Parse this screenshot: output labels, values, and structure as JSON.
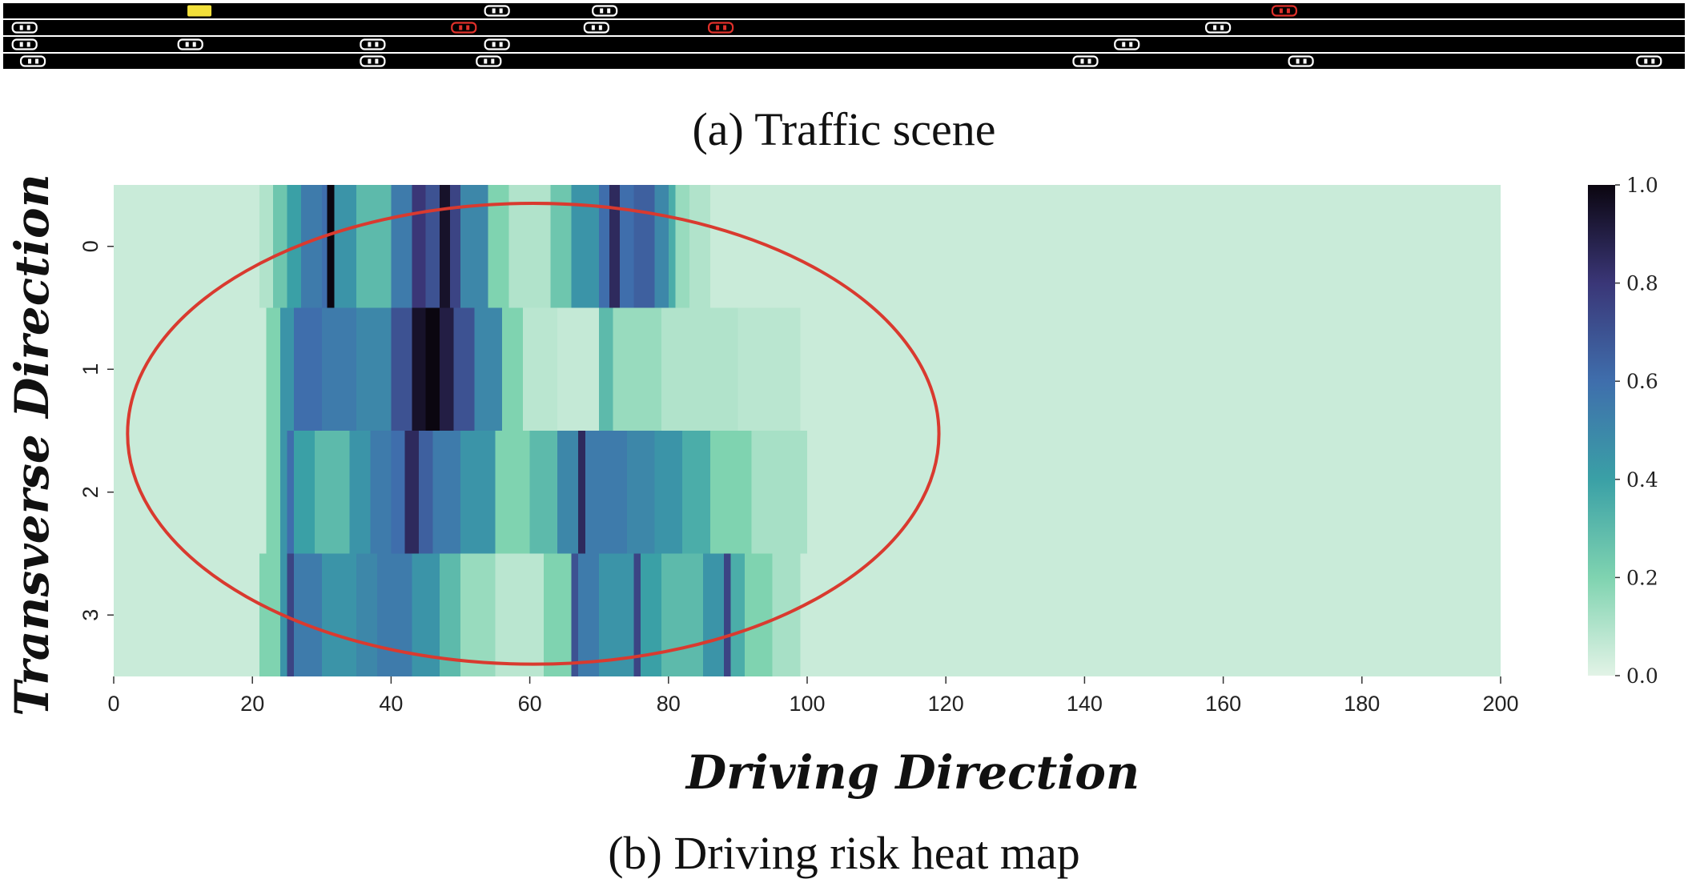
{
  "scene": {
    "caption": "(a) Traffic scene",
    "lane_count": 4,
    "road_color": "#000000",
    "divider_color": "#ffffff",
    "ego_color": "#f2e03a",
    "risk_car_color": "#e0302a",
    "normal_car_color": "#ffffff",
    "vehicles": [
      {
        "lane": 0,
        "pos": 11.5,
        "kind": "ego"
      },
      {
        "lane": 0,
        "pos": 29.5,
        "kind": "normal"
      },
      {
        "lane": 0,
        "pos": 36,
        "kind": "normal"
      },
      {
        "lane": 0,
        "pos": 77,
        "kind": "risk"
      },
      {
        "lane": 1,
        "pos": 1,
        "kind": "normal"
      },
      {
        "lane": 1,
        "pos": 27.5,
        "kind": "risk"
      },
      {
        "lane": 1,
        "pos": 35.5,
        "kind": "normal"
      },
      {
        "lane": 1,
        "pos": 43,
        "kind": "risk"
      },
      {
        "lane": 1,
        "pos": 73,
        "kind": "normal"
      },
      {
        "lane": 2,
        "pos": 1,
        "kind": "normal"
      },
      {
        "lane": 2,
        "pos": 11,
        "kind": "normal"
      },
      {
        "lane": 2,
        "pos": 22,
        "kind": "normal"
      },
      {
        "lane": 2,
        "pos": 29.5,
        "kind": "normal"
      },
      {
        "lane": 2,
        "pos": 67.5,
        "kind": "normal"
      },
      {
        "lane": 3,
        "pos": 1.5,
        "kind": "normal"
      },
      {
        "lane": 3,
        "pos": 22,
        "kind": "normal"
      },
      {
        "lane": 3,
        "pos": 29,
        "kind": "normal"
      },
      {
        "lane": 3,
        "pos": 65,
        "kind": "normal"
      },
      {
        "lane": 3,
        "pos": 78,
        "kind": "normal"
      },
      {
        "lane": 3,
        "pos": 99,
        "kind": "normal"
      }
    ]
  },
  "chart_data": {
    "type": "heatmap",
    "title": "",
    "caption": "(b) Driving risk heat map",
    "xlabel": "Driving Direction",
    "ylabel": "Transverse Direction",
    "xlim": [
      0,
      200
    ],
    "x_ticks": [
      "0",
      "20",
      "40",
      "60",
      "80",
      "100",
      "120",
      "140",
      "160",
      "180",
      "200"
    ],
    "y_categories": [
      "0",
      "1",
      "2",
      "3"
    ],
    "colorbar": {
      "ticks": [
        "0.0",
        "0.2",
        "0.4",
        "0.6",
        "0.8",
        "1.0"
      ],
      "range": [
        0,
        1
      ],
      "colormap": [
        "#e2f3e6",
        "#7fd3b0",
        "#3aa0a6",
        "#3f6eac",
        "#3a3677",
        "#0b0610"
      ]
    },
    "background_value": 0.05,
    "rows": [
      {
        "lane": "0",
        "segments": [
          [
            0,
            21,
            0.05
          ],
          [
            21,
            23,
            0.1
          ],
          [
            23,
            25,
            0.25
          ],
          [
            25,
            27,
            0.4
          ],
          [
            27,
            30,
            0.55
          ],
          [
            30,
            30.8,
            0.6
          ],
          [
            30.8,
            31.8,
            1.0
          ],
          [
            31.8,
            35,
            0.45
          ],
          [
            35,
            40,
            0.3
          ],
          [
            40,
            43,
            0.55
          ],
          [
            43,
            45,
            0.8
          ],
          [
            45,
            47,
            0.7
          ],
          [
            47,
            48.5,
            0.95
          ],
          [
            48.5,
            50,
            0.75
          ],
          [
            50,
            54,
            0.5
          ],
          [
            54,
            57,
            0.2
          ],
          [
            57,
            63,
            0.1
          ],
          [
            63,
            66,
            0.25
          ],
          [
            66,
            70,
            0.45
          ],
          [
            70,
            71.5,
            0.6
          ],
          [
            71.5,
            73,
            0.85
          ],
          [
            73,
            75,
            0.6
          ],
          [
            75,
            78,
            0.65
          ],
          [
            78,
            80,
            0.5
          ],
          [
            80,
            81,
            0.35
          ],
          [
            81,
            83,
            0.15
          ],
          [
            83,
            86,
            0.1
          ],
          [
            86,
            200,
            0.05
          ]
        ]
      },
      {
        "lane": "1",
        "segments": [
          [
            0,
            22,
            0.05
          ],
          [
            22,
            24,
            0.2
          ],
          [
            24,
            26,
            0.45
          ],
          [
            26,
            30,
            0.6
          ],
          [
            30,
            35,
            0.55
          ],
          [
            35,
            40,
            0.5
          ],
          [
            40,
            43,
            0.7
          ],
          [
            43,
            45,
            0.95
          ],
          [
            45,
            47,
            1.0
          ],
          [
            47,
            49,
            0.9
          ],
          [
            49,
            52,
            0.7
          ],
          [
            52,
            56,
            0.5
          ],
          [
            56,
            59,
            0.2
          ],
          [
            59,
            64,
            0.08
          ],
          [
            64,
            70,
            0.06
          ],
          [
            70,
            72,
            0.3
          ],
          [
            72,
            79,
            0.15
          ],
          [
            79,
            90,
            0.1
          ],
          [
            90,
            99,
            0.08
          ],
          [
            99,
            200,
            0.05
          ]
        ]
      },
      {
        "lane": "2",
        "segments": [
          [
            0,
            22,
            0.05
          ],
          [
            22,
            24,
            0.2
          ],
          [
            24,
            25,
            0.45
          ],
          [
            25,
            26,
            0.6
          ],
          [
            26,
            29,
            0.4
          ],
          [
            29,
            34,
            0.3
          ],
          [
            34,
            37,
            0.45
          ],
          [
            37,
            40,
            0.55
          ],
          [
            40,
            42,
            0.6
          ],
          [
            42,
            44,
            0.85
          ],
          [
            44,
            46,
            0.65
          ],
          [
            46,
            50,
            0.55
          ],
          [
            50,
            55,
            0.45
          ],
          [
            55,
            60,
            0.2
          ],
          [
            60,
            64,
            0.3
          ],
          [
            64,
            67,
            0.5
          ],
          [
            67,
            68,
            0.85
          ],
          [
            68,
            74,
            0.55
          ],
          [
            74,
            78,
            0.5
          ],
          [
            78,
            82,
            0.45
          ],
          [
            82,
            86,
            0.35
          ],
          [
            86,
            92,
            0.2
          ],
          [
            92,
            100,
            0.12
          ],
          [
            100,
            200,
            0.05
          ]
        ]
      },
      {
        "lane": "3",
        "segments": [
          [
            0,
            21,
            0.05
          ],
          [
            21,
            24,
            0.2
          ],
          [
            24,
            25,
            0.45
          ],
          [
            25,
            26,
            0.75
          ],
          [
            26,
            30,
            0.55
          ],
          [
            30,
            35,
            0.45
          ],
          [
            35,
            38,
            0.5
          ],
          [
            38,
            43,
            0.55
          ],
          [
            43,
            47,
            0.45
          ],
          [
            47,
            50,
            0.3
          ],
          [
            50,
            55,
            0.15
          ],
          [
            55,
            62,
            0.08
          ],
          [
            62,
            66,
            0.2
          ],
          [
            66,
            67,
            0.7
          ],
          [
            67,
            70,
            0.55
          ],
          [
            70,
            75,
            0.45
          ],
          [
            75,
            76,
            0.75
          ],
          [
            76,
            79,
            0.4
          ],
          [
            79,
            85,
            0.3
          ],
          [
            85,
            88,
            0.45
          ],
          [
            88,
            89,
            0.75
          ],
          [
            89,
            91,
            0.35
          ],
          [
            91,
            95,
            0.2
          ],
          [
            95,
            99,
            0.12
          ],
          [
            99,
            200,
            0.05
          ]
        ]
      }
    ],
    "annotation": {
      "shape": "ellipse",
      "color": "#d93a2f",
      "x_range": [
        2,
        119
      ],
      "y_range": [
        -0.35,
        3.4
      ]
    }
  }
}
